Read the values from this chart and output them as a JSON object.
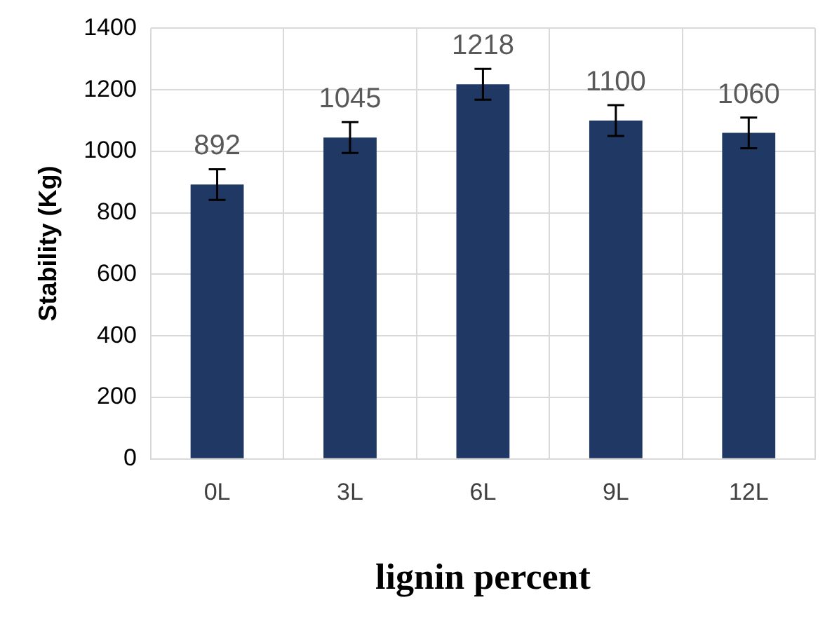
{
  "chart_data": {
    "type": "bar",
    "xlabel": "lignin percent",
    "ylabel": "Stability (Kg)",
    "categories": [
      "0L",
      "3L",
      "6L",
      "9L",
      "12L"
    ],
    "values": [
      892,
      1045,
      1218,
      1100,
      1060
    ],
    "errors": [
      50,
      50,
      50,
      50,
      50
    ],
    "color": "#1f3864",
    "data_labels": true,
    "ylim": [
      0,
      1400
    ],
    "yticks": [
      0,
      200,
      400,
      600,
      800,
      1000,
      1200,
      1400
    ],
    "grid": true,
    "legend": false
  }
}
